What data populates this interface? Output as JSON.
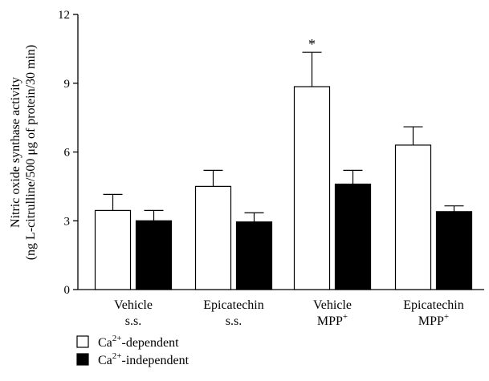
{
  "chart_data": {
    "type": "bar",
    "ylabel_line1": "Nitric oxide synthase activity",
    "ylabel_line2": "(ng L-citrulline/500 μg of protein/30 min)",
    "ylim": [
      0,
      12
    ],
    "yticks": [
      0,
      3,
      6,
      9,
      12
    ],
    "categories": [
      {
        "line1": "Vehicle",
        "line2": "s.s.",
        "line2_sup": ""
      },
      {
        "line1": "Epicatechin",
        "line2": "s.s.",
        "line2_sup": ""
      },
      {
        "line1": "Vehicle",
        "line2": "MPP",
        "line2_sup": "+"
      },
      {
        "line1": "Epicatechin",
        "line2": "MPP",
        "line2_sup": "+"
      }
    ],
    "series": [
      {
        "name_pre": "Ca",
        "name_sup": "2+",
        "name_post": "-dependent",
        "color": "#ffffff",
        "values": [
          3.45,
          4.5,
          8.85,
          6.3
        ],
        "errors": [
          0.7,
          0.7,
          1.5,
          0.8
        ]
      },
      {
        "name_pre": "Ca",
        "name_sup": "2+",
        "name_post": "-independent",
        "color": "#000000",
        "values": [
          3.0,
          2.95,
          4.6,
          3.4
        ],
        "errors": [
          0.45,
          0.4,
          0.6,
          0.25
        ]
      }
    ],
    "annotations": [
      {
        "text": "*",
        "series": 0,
        "category": 2
      }
    ],
    "legend_position": "bottom-left",
    "grid": false
  }
}
